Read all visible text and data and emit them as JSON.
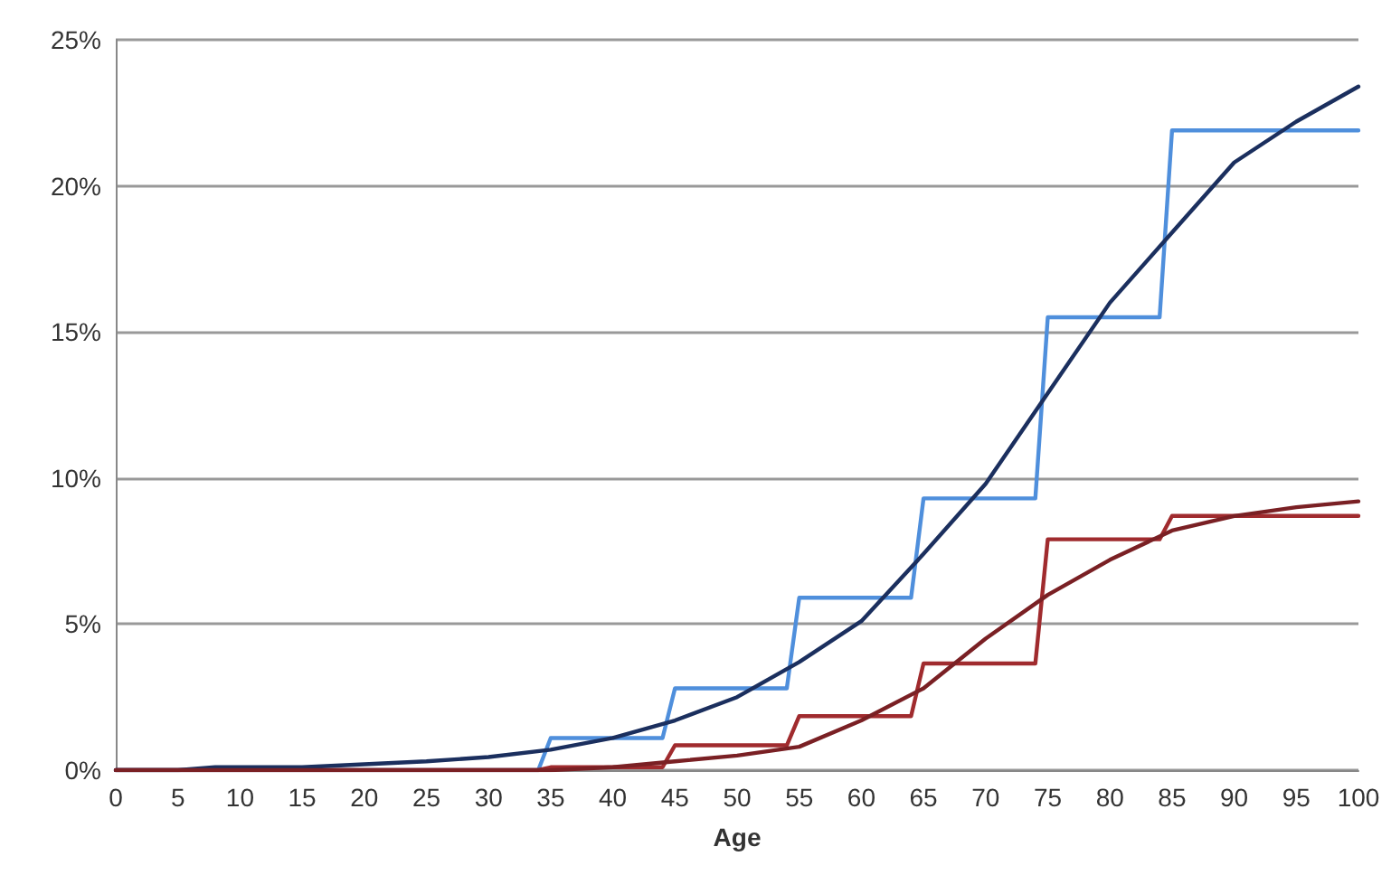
{
  "chart_data": {
    "type": "line",
    "xlabel": "Age",
    "xlim": [
      0,
      100
    ],
    "xticks": [
      0,
      5,
      10,
      15,
      20,
      25,
      30,
      35,
      40,
      45,
      50,
      55,
      60,
      65,
      70,
      75,
      80,
      85,
      90,
      95,
      100
    ],
    "ylim": [
      0,
      25
    ],
    "yticks": [
      {
        "value": 0,
        "label": "0%"
      },
      {
        "value": 5,
        "label": "5%"
      },
      {
        "value": 10,
        "label": "10%"
      },
      {
        "value": 15,
        "label": "15%"
      },
      {
        "value": 20,
        "label": "20%"
      },
      {
        "value": 25,
        "label": "25%"
      }
    ],
    "grid": "y",
    "marker": "none",
    "line_style": "solid",
    "series": [
      {
        "color": "#4f8fdc",
        "x": [
          0,
          34,
          35,
          44,
          45,
          54,
          55,
          64,
          65,
          74,
          75,
          84,
          85,
          100
        ],
        "values": [
          0,
          0,
          1.1,
          1.1,
          2.8,
          2.8,
          5.9,
          5.9,
          9.3,
          9.3,
          15.5,
          15.5,
          21.9,
          21.9
        ]
      },
      {
        "color": "#a02b2e",
        "x": [
          0,
          34,
          35,
          44,
          45,
          54,
          55,
          64,
          65,
          74,
          75,
          84,
          85,
          100
        ],
        "values": [
          0,
          0,
          0.1,
          0.1,
          0.85,
          0.85,
          1.85,
          1.85,
          3.65,
          3.65,
          7.9,
          7.9,
          8.7,
          8.7
        ]
      },
      {
        "color": "#1b2f5e",
        "x": [
          0,
          5,
          8,
          10,
          15,
          20,
          25,
          30,
          35,
          40,
          45,
          50,
          55,
          60,
          65,
          70,
          75,
          80,
          85,
          90,
          95,
          100
        ],
        "values": [
          0,
          0,
          0.1,
          0.1,
          0.1,
          0.2,
          0.3,
          0.45,
          0.7,
          1.1,
          1.7,
          2.5,
          3.7,
          5.1,
          7.4,
          9.8,
          12.9,
          16.0,
          18.4,
          20.8,
          22.2,
          23.4
        ]
      },
      {
        "color": "#7a2024",
        "x": [
          0,
          35,
          40,
          45,
          50,
          55,
          60,
          65,
          70,
          75,
          80,
          85,
          90,
          95,
          100
        ],
        "values": [
          0,
          0,
          0.1,
          0.3,
          0.5,
          0.8,
          1.7,
          2.8,
          4.5,
          6.0,
          7.2,
          8.2,
          8.7,
          9.0,
          9.2
        ]
      }
    ]
  }
}
